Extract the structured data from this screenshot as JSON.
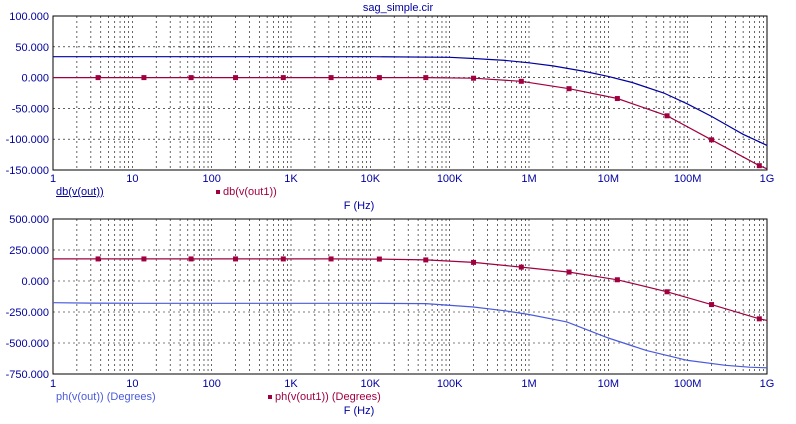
{
  "window": {
    "title": "sag_simple.cir"
  },
  "colors": {
    "background": "#ffffff",
    "axis": "#000000",
    "grid": "#000000",
    "series_blue": "#0000a0",
    "series_maroon": "#a00040",
    "series_lightblue": "#4a5adc"
  },
  "x_tick_labels": [
    "1",
    "10",
    "100",
    "1K",
    "10K",
    "100K",
    "1M",
    "10M",
    "100M",
    "1G"
  ],
  "chart_data": [
    {
      "type": "line",
      "title": "sag_simple.cir",
      "xlabel": "F (Hz)",
      "xscale": "log",
      "xlim": [
        1,
        1000000000
      ],
      "ylim": [
        -150,
        100
      ],
      "y_ticks": [
        100,
        50,
        0,
        -50,
        -100,
        -150
      ],
      "y_tick_labels": [
        "100.000",
        "50.000",
        "0.000",
        "-50.000",
        "-100.000",
        "-150.000"
      ],
      "grid": true,
      "legend": [
        "db(v(out))",
        "db(v(out1))"
      ],
      "series": [
        {
          "name": "db(v(out))",
          "color": "#0000a0",
          "marker": "none",
          "x": [
            1,
            10,
            100,
            1000,
            10000,
            100000,
            200000,
            500000,
            1000000,
            2000000,
            5000000,
            10000000,
            20000000,
            50000000,
            100000000,
            200000000,
            500000000,
            1000000000
          ],
          "y": [
            34,
            34,
            34,
            34,
            34,
            33,
            31,
            28,
            24,
            19,
            10,
            2,
            -8,
            -25,
            -43,
            -63,
            -92,
            -110
          ]
        },
        {
          "name": "db(v(out1))",
          "color": "#a00040",
          "marker": "square",
          "x": [
            1,
            3.7,
            14,
            55,
            200,
            800,
            3200,
            13000,
            50000,
            200000,
            800000,
            3200000,
            13000000,
            55000000,
            200000000,
            800000000,
            1000000000
          ],
          "y": [
            0,
            0,
            0,
            0,
            0,
            0,
            0,
            0,
            0,
            -1,
            -6,
            -18,
            -34,
            -62,
            -101,
            -143,
            -148
          ]
        }
      ]
    },
    {
      "type": "line",
      "xlabel": "F (Hz)",
      "xscale": "log",
      "xlim": [
        1,
        1000000000
      ],
      "ylim": [
        -750,
        500
      ],
      "y_ticks": [
        500,
        250,
        0,
        -250,
        -500,
        -750
      ],
      "y_tick_labels": [
        "500.000",
        "250.000",
        "0.000",
        "-250.000",
        "-500.000",
        "-750.000"
      ],
      "grid": true,
      "legend": [
        "ph(v(out)) (Degrees)",
        "ph(v(out1)) (Degrees)"
      ],
      "series": [
        {
          "name": "ph(v(out)) (Degrees)",
          "color": "#4a5adc",
          "marker": "none",
          "x": [
            1,
            3,
            10,
            100,
            1000,
            10000,
            50000,
            200000,
            500000,
            1000000,
            3000000,
            10000000,
            30000000,
            100000000,
            300000000,
            600000000,
            1000000000
          ],
          "y": [
            -175,
            -178,
            -180,
            -180,
            -180,
            -180,
            -182,
            -210,
            -240,
            -270,
            -330,
            -460,
            -560,
            -640,
            -680,
            -695,
            -700
          ]
        },
        {
          "name": "ph(v(out1)) (Degrees)",
          "color": "#a00040",
          "marker": "square",
          "x": [
            1,
            3.7,
            14,
            55,
            200,
            800,
            3200,
            13000,
            50000,
            200000,
            800000,
            3200000,
            13000000,
            55000000,
            200000000,
            800000000,
            1000000000
          ],
          "y": [
            178,
            178,
            178,
            178,
            178,
            178,
            178,
            177,
            170,
            150,
            112,
            72,
            10,
            -87,
            -190,
            -305,
            -318
          ]
        }
      ]
    }
  ]
}
